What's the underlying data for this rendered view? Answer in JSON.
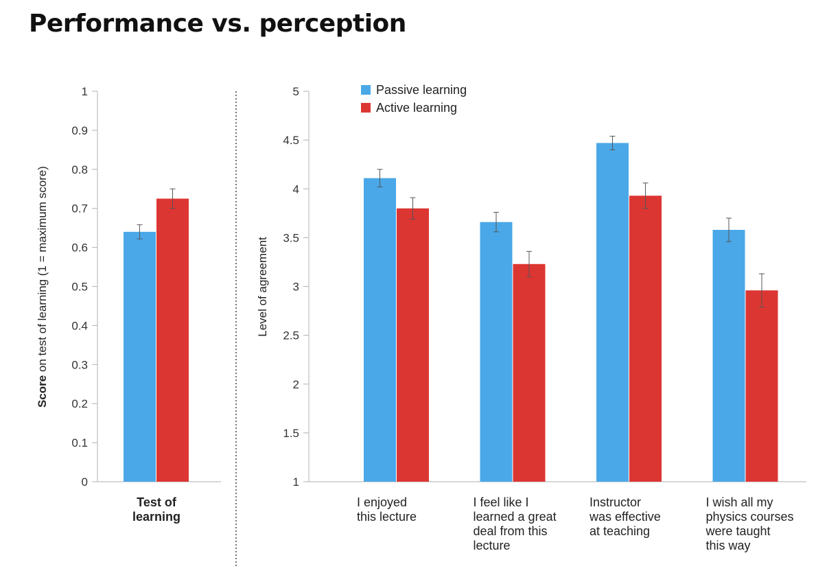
{
  "title": "Performance vs. perception",
  "colors": {
    "passive": "#4aa8e8",
    "active": "#dc3632",
    "axis": "#bdbdbd",
    "divider": "#444444"
  },
  "legend": {
    "passive_label": "Passive learning",
    "active_label": "Active learning"
  },
  "chart_data": [
    {
      "type": "bar",
      "ylabel_bold": "Score",
      "ylabel_rest": " on test of learning  (1 = maximum score)",
      "ylim": [
        0,
        1
      ],
      "yticks": [
        "0",
        "0.1",
        "0.2",
        "0.3",
        "0.4",
        "0.5",
        "0.6",
        "0.7",
        "0.8",
        "0.9",
        "1"
      ],
      "categories": [
        [
          "Test of",
          "learning"
        ]
      ],
      "series": [
        {
          "name": "Passive learning",
          "values": [
            0.64
          ],
          "err": [
            0.018
          ]
        },
        {
          "name": "Active learning",
          "values": [
            0.725
          ],
          "err": [
            0.025
          ]
        }
      ]
    },
    {
      "type": "bar",
      "ylabel": "Level of agreement",
      "ylim": [
        1,
        5
      ],
      "yticks": [
        "1",
        "1.5",
        "2",
        "2.5",
        "3",
        "3.5",
        "4",
        "4.5",
        "5"
      ],
      "categories": [
        [
          "I enjoyed",
          "this lecture"
        ],
        [
          "I feel like I",
          "learned a great",
          "deal from this",
          "lecture"
        ],
        [
          "Instructor",
          "was effective",
          "at teaching"
        ],
        [
          "I wish all my",
          "physics courses",
          "were taught",
          "this way"
        ]
      ],
      "series": [
        {
          "name": "Passive learning",
          "values": [
            4.11,
            3.66,
            4.47,
            3.58
          ],
          "err": [
            0.09,
            0.1,
            0.07,
            0.12
          ]
        },
        {
          "name": "Active learning",
          "values": [
            3.8,
            3.23,
            3.93,
            2.96
          ],
          "err": [
            0.11,
            0.13,
            0.13,
            0.17
          ]
        }
      ]
    }
  ]
}
